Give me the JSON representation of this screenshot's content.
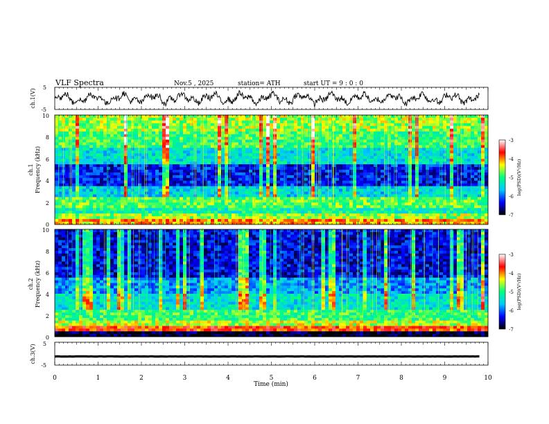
{
  "header": {
    "title": "VLF  Spectra",
    "date": "Nov.5  , 2025",
    "station": "station= ATH",
    "start": "start  UT  =    9  : 0  : 0"
  },
  "chart_data": [
    {
      "type": "line",
      "panel": "ch1-waveform",
      "ylabel": "ch.1(V)",
      "ylim": [
        -5,
        5
      ],
      "yticks": [
        "5",
        "-5"
      ],
      "x_range_min": [
        0,
        9.8
      ],
      "color": "#000000",
      "note_values": "noisy waveform oscillating roughly between -3 and 3 V"
    },
    {
      "type": "heatmap",
      "panel": "ch1-spectrogram",
      "ylabel_line1": "ch.1",
      "ylabel_line2": "Frequency  (kHz)",
      "ylim": [
        0,
        10
      ],
      "yticks": [
        "10",
        "8",
        "6",
        "4",
        "2",
        "0"
      ],
      "colorbar": {
        "label": "log(PSD)(V²/Hz)",
        "range": [
          -7,
          -3
        ],
        "ticks": [
          "-3",
          "-4",
          "-5",
          "-6",
          "-7"
        ]
      },
      "bands": [
        {
          "from": 0.0,
          "to": 0.25,
          "level": -4.2
        },
        {
          "from": 0.25,
          "to": 0.35,
          "level": -6.8
        },
        {
          "from": 0.35,
          "to": 0.55,
          "level": -4.0
        },
        {
          "from": 0.55,
          "to": 1.0,
          "level": -4.6
        },
        {
          "from": 1.0,
          "to": 1.6,
          "level": -5.2
        },
        {
          "from": 1.6,
          "to": 2.4,
          "level": -4.8
        },
        {
          "from": 2.4,
          "to": 3.5,
          "level": -5.5
        },
        {
          "from": 3.5,
          "to": 5.5,
          "level": -6.3
        },
        {
          "from": 5.5,
          "to": 7.0,
          "level": -5.4
        },
        {
          "from": 7.0,
          "to": 8.5,
          "level": -4.9
        },
        {
          "from": 8.5,
          "to": 10.0,
          "level": -4.6
        }
      ]
    },
    {
      "type": "heatmap",
      "panel": "ch2-spectrogram",
      "ylabel_line1": "ch.2",
      "ylabel_line2": "Frequency  (kHz)",
      "ylim": [
        0,
        10
      ],
      "yticks": [
        "10",
        "8",
        "6",
        "4",
        "2",
        "0"
      ],
      "colorbar": {
        "label": "log(PSD)(V²/Hz)",
        "range": [
          -7,
          -3
        ],
        "ticks": [
          "-3",
          "-4",
          "-5",
          "-6",
          "-7"
        ]
      },
      "bands": [
        {
          "from": 0.0,
          "to": 0.4,
          "level": -6.9
        },
        {
          "from": 0.4,
          "to": 0.9,
          "level": -3.8
        },
        {
          "from": 0.9,
          "to": 1.6,
          "level": -4.5
        },
        {
          "from": 1.6,
          "to": 2.4,
          "level": -4.9
        },
        {
          "from": 2.4,
          "to": 4.0,
          "level": -5.4
        },
        {
          "from": 4.0,
          "to": 5.5,
          "level": -5.8
        },
        {
          "from": 5.5,
          "to": 10.0,
          "level": -6.4
        }
      ]
    },
    {
      "type": "line",
      "panel": "ch3-waveform",
      "ylabel": "ch.3(V)",
      "ylim": [
        -5,
        5
      ],
      "yticks": [
        "5",
        "-5"
      ],
      "level_v": -1.2,
      "x_range_min": [
        0,
        9.8
      ],
      "color": "#000000"
    }
  ],
  "xaxis": {
    "label": "Time  (min)",
    "range": [
      0,
      10
    ],
    "ticks": [
      "0",
      "1",
      "2",
      "3",
      "4",
      "5",
      "6",
      "7",
      "8",
      "9",
      "10"
    ]
  },
  "colormap": [
    "#000000",
    "#0000ff",
    "#00c8ff",
    "#00ff80",
    "#ffff00",
    "#ff0000",
    "#ffffff"
  ]
}
